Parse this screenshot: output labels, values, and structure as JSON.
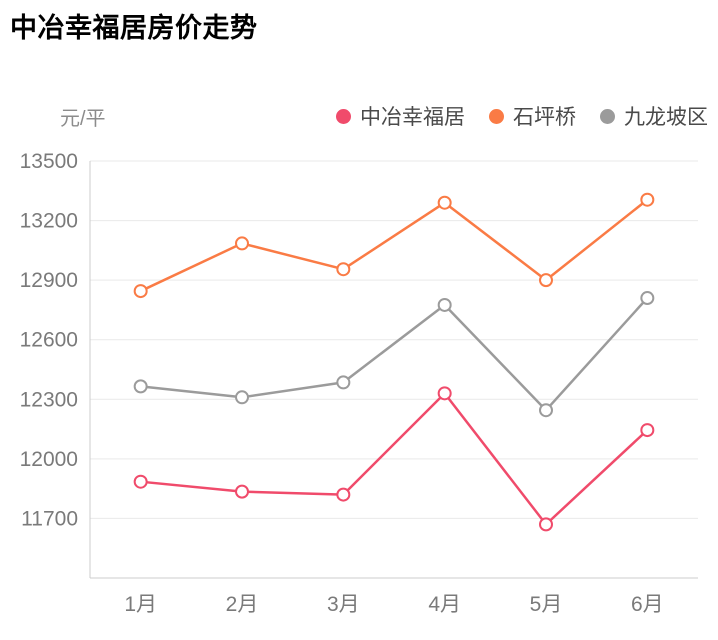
{
  "title": "中冶幸福居房价走势",
  "chart_data": {
    "type": "line",
    "title": "中冶幸福居房价走势",
    "unit_label": "元/平",
    "x": [
      "1月",
      "2月",
      "3月",
      "4月",
      "5月",
      "6月"
    ],
    "xlabel": "",
    "ylabel": "元/平",
    "series": [
      {
        "name": "中冶幸福居",
        "color": "#F04B6B",
        "values": [
          11885,
          11835,
          11820,
          12330,
          11670,
          12145
        ]
      },
      {
        "name": "石坪桥",
        "color": "#FA7B45",
        "values": [
          12845,
          13085,
          12955,
          13290,
          12900,
          13305
        ]
      },
      {
        "name": "九龙坡区",
        "color": "#9B9B9B",
        "values": [
          12365,
          12310,
          12385,
          12775,
          12245,
          12810
        ]
      }
    ],
    "ylim": [
      11400,
      13500
    ],
    "yticks": [
      13500,
      13200,
      12900,
      12600,
      12300,
      12000,
      11700
    ],
    "grid": true,
    "legend_position": "top",
    "marker": "open-circle"
  },
  "colors": {
    "grid_line": "#e9e9e9",
    "axis_line": "#cccccc",
    "tick_text": "#7a7a7a",
    "title_text": "#000000",
    "legend_text": "#4a4a4a"
  }
}
